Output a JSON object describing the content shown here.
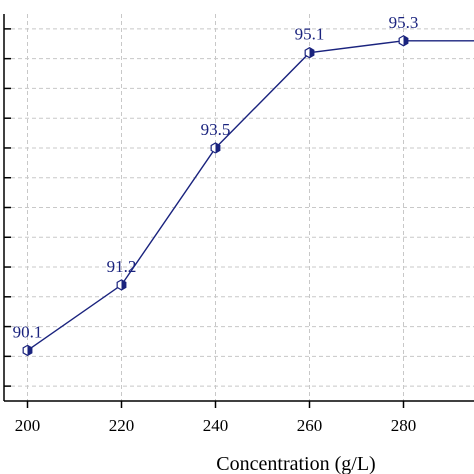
{
  "chart_data": {
    "type": "line",
    "xlabel": "Concentration (g/L)",
    "ylabel": "",
    "x": [
      200,
      220,
      240,
      260,
      280,
      300
    ],
    "series": [
      {
        "values": [
          90.1,
          91.2,
          93.5,
          95.1,
          95.3,
          95.3
        ],
        "data_labels": [
          "90.1",
          "91.2",
          "93.5",
          "95.1",
          "95.3",
          ""
        ]
      }
    ],
    "x_ticks": [
      "200",
      "220",
      "240",
      "260",
      "280"
    ],
    "xlim": [
      195,
      295
    ],
    "ylim": [
      89.25,
      95.75
    ],
    "y_tick_step": 0.5,
    "grid": true,
    "colors": {
      "line": "#1a237e",
      "marker_fill": "#1a237e",
      "grid": "#c8c8c8",
      "axis": "#000000"
    }
  }
}
